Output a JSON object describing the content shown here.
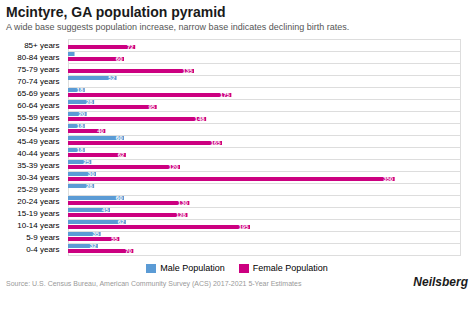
{
  "chart_data": {
    "type": "bar",
    "orientation": "horizontal",
    "title": "Mcintyre, GA population pyramid",
    "subtitle": "A wide base suggests population increase, narrow base indicates declining birth rates.",
    "source": "Source: U.S. Census Bureau, American Community Survey (ACS) 2017-2021 5-Year Estimates",
    "brand": "Neilsberg",
    "categories": [
      "0-4 years",
      "5-9 years",
      "10-14 years",
      "15-19 years",
      "20-24 years",
      "25-29 years",
      "30-34 years",
      "35-39 years",
      "40-44 years",
      "45-49 years",
      "50-54 years",
      "55-59 years",
      "60-64 years",
      "65-69 years",
      "70-74 years",
      "75-79 years",
      "80-84 years",
      "85+ years"
    ],
    "series": [
      {
        "name": "Male Population",
        "color": "#5b9bd5",
        "values": [
          32,
          35,
          62,
          45,
          60,
          28,
          30,
          25,
          18,
          60,
          18,
          20,
          28,
          18,
          52,
          0,
          7,
          0
        ],
        "value_labels": [
          "32",
          "35",
          "62",
          "45",
          "60",
          "28",
          "30",
          "25",
          "18",
          "60",
          "18",
          "20",
          "28",
          "18",
          "52",
          null,
          null,
          null
        ]
      },
      {
        "name": "Female Population",
        "color": "#cc0080",
        "values": [
          70,
          55,
          195,
          128,
          130,
          0,
          350,
          120,
          62,
          165,
          40,
          148,
          95,
          175,
          0,
          135,
          60,
          72
        ],
        "value_labels": [
          "70",
          "55",
          "195",
          "128",
          "130",
          null,
          "350",
          "120",
          "62",
          "165",
          "40",
          "148",
          "95",
          "175",
          null,
          "135",
          "60",
          "72"
        ]
      }
    ],
    "xlim": [
      0,
      420
    ],
    "xticks": [],
    "tick_labels": "y",
    "grid": true,
    "data_labels": true,
    "legend": "bottom"
  }
}
